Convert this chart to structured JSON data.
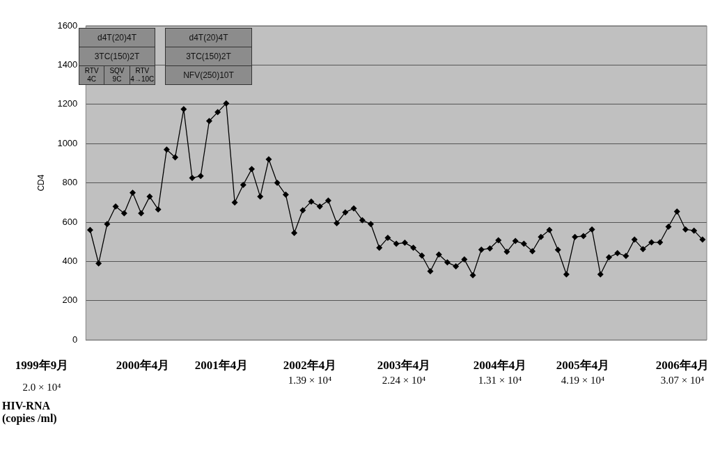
{
  "chart_data": {
    "type": "line",
    "ylabel": "CD4",
    "categories": [
      null,
      null,
      null,
      null,
      null,
      null,
      null,
      null,
      null,
      null,
      null,
      null,
      null,
      null,
      null,
      null,
      null,
      null,
      null,
      null,
      null,
      null,
      null,
      null,
      null,
      null,
      null,
      null,
      null,
      null,
      null,
      null,
      null,
      null,
      null,
      null,
      null,
      null,
      null,
      null,
      null,
      null,
      null,
      null,
      null,
      null,
      null,
      null,
      null,
      null,
      null,
      null,
      null,
      null,
      null,
      null,
      null,
      null,
      null,
      null,
      null,
      null,
      null,
      null,
      null,
      null,
      null,
      null,
      null,
      null,
      null,
      null,
      null
    ],
    "series": [
      {
        "color": "#000000",
        "values": [
          560,
          390,
          590,
          680,
          645,
          750,
          645,
          730,
          665,
          970,
          930,
          1175,
          825,
          835,
          1115,
          1160,
          1205,
          700,
          790,
          870,
          730,
          920,
          800,
          740,
          545,
          660,
          705,
          680,
          710,
          595,
          650,
          670,
          610,
          590,
          470,
          520,
          490,
          495,
          470,
          430,
          350,
          435,
          395,
          375,
          410,
          330,
          460,
          466,
          508,
          449,
          504,
          490,
          452,
          525,
          560,
          459,
          334,
          525,
          529,
          563,
          334,
          421,
          442,
          428,
          511,
          463,
          497,
          497,
          577,
          654,
          563,
          557,
          511
        ]
      }
    ],
    "ylim": [
      0,
      1600
    ],
    "yticks": [
      0,
      200,
      400,
      600,
      800,
      1000,
      1200,
      1400,
      1600
    ],
    "grid": "y",
    "marker": "diamond",
    "line_style": "solid",
    "tick_labels": "y",
    "legend": false,
    "annotations": [
      "d4T(20)4T",
      "3TC(150)2T",
      "RTV 4C",
      "SQV 9C",
      "RTV 4→10C",
      "d4T(20)4T",
      "3TC(150)2T",
      "NFV(250)10T",
      "1999年9月",
      "2000年4月",
      "2001年4月",
      "2002年4月",
      "2003年4月",
      "2004年4月",
      "2005年4月",
      "2006年4月",
      "2.0 × 10⁴",
      "1.39 × 10⁴",
      "2.24 × 10⁴",
      "1.31 × 10⁴",
      "4.19 × 10⁴",
      "3.07 × 10⁴",
      "HIV-RNA (copies /ml)"
    ]
  }
}
